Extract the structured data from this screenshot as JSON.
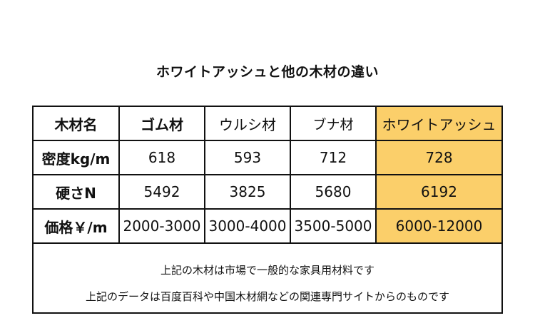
{
  "title": "ホワイトアッシュと他の木材の違い",
  "table": {
    "header": [
      "木材名",
      "ゴム材",
      "ウルシ材",
      "ブナ材",
      "ホワイトアッシュ"
    ],
    "rows": [
      {
        "label": "密度kg/m",
        "values": [
          "618",
          "593",
          "712",
          "728"
        ]
      },
      {
        "label": "硬さN",
        "values": [
          "5492",
          "3825",
          "5680",
          "6192"
        ]
      },
      {
        "label": "価格￥/m",
        "values": [
          "2000-3000",
          "3000-4000",
          "3500-5000",
          "6000-12000"
        ]
      }
    ],
    "highlight_color": "#fbcf6a"
  },
  "notes": [
    "上記の木材は市場で一般的な家具用材料です",
    "上記のデータは百度百科や中国木材網などの関連専門サイトからのものです"
  ]
}
